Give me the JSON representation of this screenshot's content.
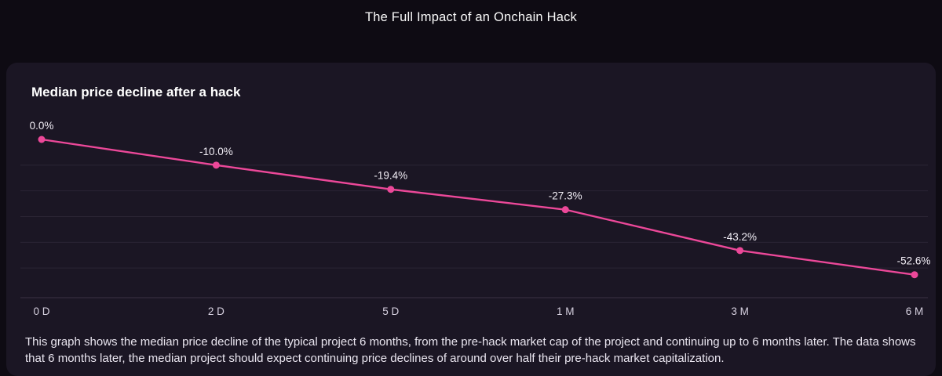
{
  "page": {
    "title": "The Full Impact of an Onchain Hack"
  },
  "card": {
    "title": "Median price decline after a hack",
    "caption": "This graph shows the median price decline of the typical project 6 months, from the pre-hack market cap of the project and continuing up to 6 months later. The data shows that 6 months later, the median project should expect continuing price declines of around over half their pre-hack market capitalization."
  },
  "chart_data": {
    "type": "line",
    "title": "Median price decline after a hack",
    "xlabel": "",
    "ylabel": "",
    "categories": [
      "0 D",
      "2 D",
      "5 D",
      "1 M",
      "3 M",
      "6 M"
    ],
    "values": [
      0.0,
      -10.0,
      -19.4,
      -27.3,
      -43.2,
      -52.6
    ],
    "point_labels": [
      "0.0%",
      "-10.0%",
      "-19.4%",
      "-27.3%",
      "-43.2%",
      "-52.6%"
    ],
    "series": [
      {
        "name": "Median price decline",
        "values": [
          0.0,
          -10.0,
          -19.4,
          -27.3,
          -43.2,
          -52.6
        ]
      }
    ],
    "ylim": [
      -60,
      0
    ],
    "grid": "horizontal",
    "grid_step": 10,
    "legend": "none",
    "colors": {
      "line": "#ec4899",
      "point": "#ec4899",
      "grid": "#2b2534",
      "axis": "#3b3345",
      "label": "#f2eef6",
      "tick": "#d6d0df",
      "card_bg": "#1b1624",
      "page_bg": "#0e0b13"
    }
  }
}
